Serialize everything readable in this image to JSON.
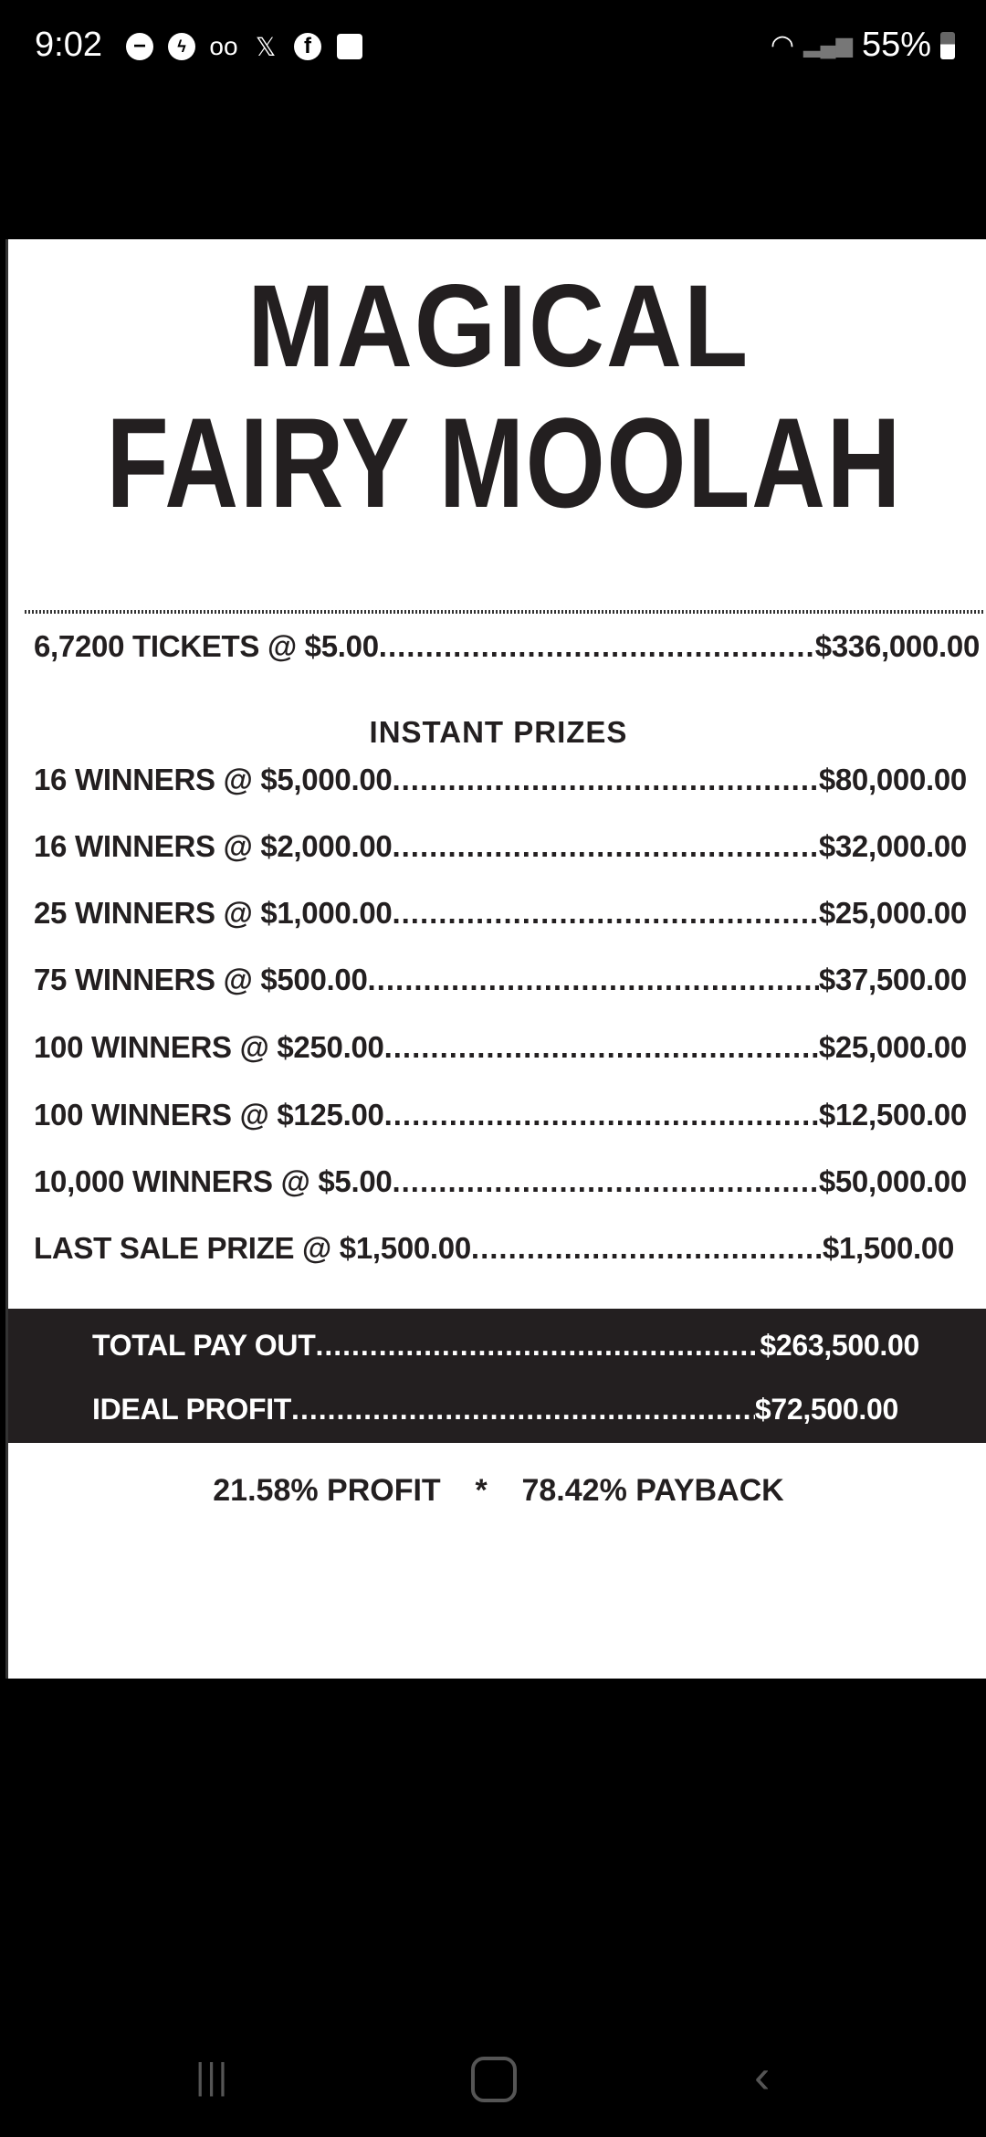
{
  "status_bar": {
    "time": "9:02",
    "notification_icons": [
      "do-not-disturb-icon",
      "messenger-icon",
      "voicemail-icon",
      "x-icon",
      "facebook-icon",
      "gallery-icon"
    ],
    "battery": "55%"
  },
  "poster": {
    "title_line1": "MAGICAL",
    "title_line2": "FAIRY MOOLAH",
    "tickets": {
      "label": "6,7200 TICKETS @ $5.00",
      "value": "$336,000.00"
    },
    "section_heading": "INSTANT  PRIZES",
    "prizes": [
      {
        "label": "16 WINNERS @ $5,000.00",
        "value": "$80,000.00"
      },
      {
        "label": "16 WINNERS @ $2,000.00",
        "value": "$32,000.00"
      },
      {
        "label": "25 WINNERS @ $1,000.00",
        "value": "$25,000.00"
      },
      {
        "label": "75 WINNERS @ $500.00",
        "value": "$37,500.00"
      },
      {
        "label": "100 WINNERS @ $250.00",
        "value": "$25,000.00"
      },
      {
        "label": "100 WINNERS @ $125.00",
        "value": "$12,500.00"
      },
      {
        "label": "10,000 WINNERS @ $5.00",
        "value": "$50,000.00"
      },
      {
        "label": "LAST SALE PRIZE @ $1,500.00",
        "value": "$1,500.00"
      }
    ],
    "total_payout": {
      "label": "TOTAL PAY OUT",
      "value": "$263,500.00"
    },
    "ideal_profit": {
      "label": "IDEAL PROFIT",
      "value": "$72,500.00"
    },
    "percent_line": "21.58% PROFIT    *    78.42% PAYBACK"
  },
  "colors": {
    "ink": "#231f20",
    "band": "#231f20",
    "background": "#ffffff"
  }
}
